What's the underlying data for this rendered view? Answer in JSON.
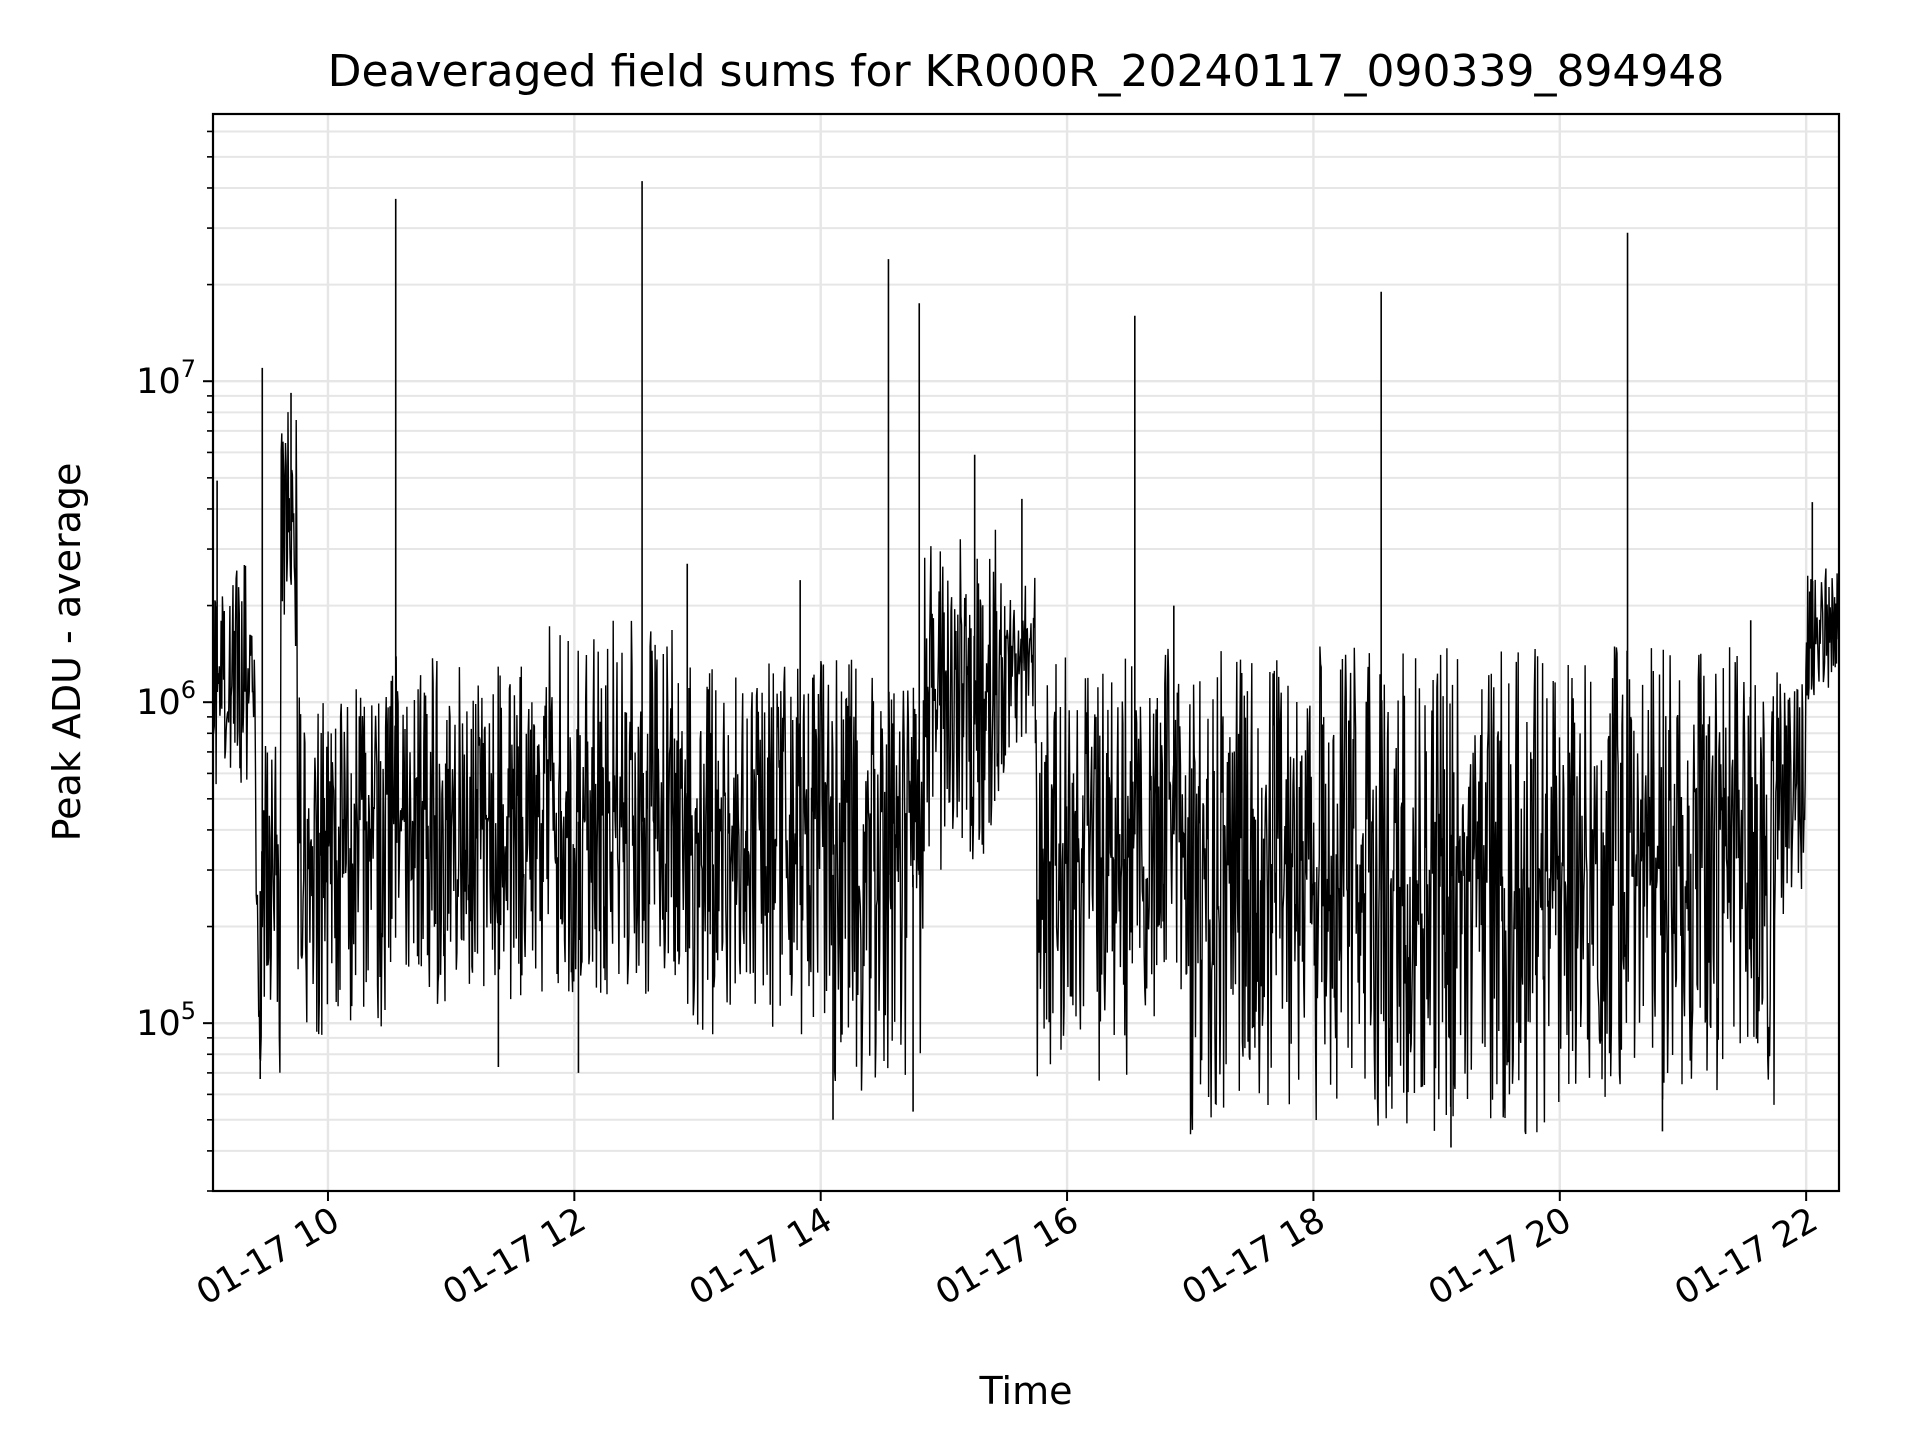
{
  "chart_data": {
    "type": "line",
    "title": "Deaveraged field sums for KR000R_20240117_090339_894948",
    "xlabel": "Time",
    "ylabel": "Peak ADU - average",
    "yscale": "log",
    "grid": true,
    "line_color": "#000000",
    "grid_color": "#e6e6e6",
    "xlim": [
      "2024-01-17 09:04",
      "2024-01-17 22:16"
    ],
    "ylim": [
      30000,
      68000000
    ],
    "x_ticks": [
      {
        "value": "2024-01-17 10:00",
        "label": "01-17 10"
      },
      {
        "value": "2024-01-17 12:00",
        "label": "01-17 12"
      },
      {
        "value": "2024-01-17 14:00",
        "label": "01-17 14"
      },
      {
        "value": "2024-01-17 16:00",
        "label": "01-17 16"
      },
      {
        "value": "2024-01-17 18:00",
        "label": "01-17 18"
      },
      {
        "value": "2024-01-17 20:00",
        "label": "01-17 20"
      },
      {
        "value": "2024-01-17 22:00",
        "label": "01-17 22"
      }
    ],
    "y_ticks": [
      {
        "value": 100000,
        "base": "10",
        "exp": "5"
      },
      {
        "value": 1000000,
        "base": "10",
        "exp": "6"
      },
      {
        "value": 10000000,
        "base": "10",
        "exp": "7"
      }
    ],
    "series": [
      {
        "segments": [
          {
            "start": "2024-01-17 09:04",
            "end": "2024-01-17 09:25",
            "low": 550000,
            "high": 2800000
          },
          {
            "start": "2024-01-17 09:25",
            "end": "2024-01-17 09:37",
            "low": 70000,
            "high": 950000
          },
          {
            "start": "2024-01-17 09:37",
            "end": "2024-01-17 09:45",
            "low": 1300000,
            "high": 9000000
          },
          {
            "start": "2024-01-17 09:45",
            "end": "2024-01-17 10:30",
            "low": 90000,
            "high": 1100000
          },
          {
            "start": "2024-01-17 10:30",
            "end": "2024-01-17 11:45",
            "low": 110000,
            "high": 1500000
          },
          {
            "start": "2024-01-17 11:45",
            "end": "2024-01-17 13:00",
            "low": 100000,
            "high": 1800000
          },
          {
            "start": "2024-01-17 13:00",
            "end": "2024-01-17 14:00",
            "low": 90000,
            "high": 1400000
          },
          {
            "start": "2024-01-17 14:00",
            "end": "2024-01-17 14:50",
            "low": 60000,
            "high": 1400000
          },
          {
            "start": "2024-01-17 14:50",
            "end": "2024-01-17 15:30",
            "low": 300000,
            "high": 3500000
          },
          {
            "start": "2024-01-17 15:30",
            "end": "2024-01-17 15:45",
            "low": 700000,
            "high": 2500000
          },
          {
            "start": "2024-01-17 15:45",
            "end": "2024-01-17 16:30",
            "low": 65000,
            "high": 1400000
          },
          {
            "start": "2024-01-17 16:30",
            "end": "2024-01-17 17:00",
            "low": 100000,
            "high": 1500000
          },
          {
            "start": "2024-01-17 17:00",
            "end": "2024-01-17 18:00",
            "low": 45000,
            "high": 1500000
          },
          {
            "start": "2024-01-17 18:00",
            "end": "2024-01-17 20:00",
            "low": 45000,
            "high": 1500000
          },
          {
            "start": "2024-01-17 20:00",
            "end": "2024-01-17 21:45",
            "low": 55000,
            "high": 1500000
          },
          {
            "start": "2024-01-17 21:45",
            "end": "2024-01-17 22:00",
            "low": 200000,
            "high": 1300000
          },
          {
            "start": "2024-01-17 22:00",
            "end": "2024-01-17 22:16",
            "low": 1000000,
            "high": 2800000
          }
        ],
        "spikes": [
          {
            "x": "2024-01-17 09:06",
            "y": 4900000
          },
          {
            "x": "2024-01-17 09:28",
            "y": 11000000
          },
          {
            "x": "2024-01-17 09:42",
            "y": 9200000
          },
          {
            "x": "2024-01-17 10:33",
            "y": 37000000
          },
          {
            "x": "2024-01-17 12:33",
            "y": 42000000
          },
          {
            "x": "2024-01-17 12:55",
            "y": 2700000
          },
          {
            "x": "2024-01-17 13:50",
            "y": 2400000
          },
          {
            "x": "2024-01-17 14:33",
            "y": 24000000
          },
          {
            "x": "2024-01-17 14:48",
            "y": 17500000
          },
          {
            "x": "2024-01-17 15:15",
            "y": 5900000
          },
          {
            "x": "2024-01-17 15:38",
            "y": 4300000
          },
          {
            "x": "2024-01-17 16:33",
            "y": 16000000
          },
          {
            "x": "2024-01-17 16:52",
            "y": 2000000
          },
          {
            "x": "2024-01-17 18:33",
            "y": 19000000
          },
          {
            "x": "2024-01-17 20:33",
            "y": 29000000
          },
          {
            "x": "2024-01-17 21:33",
            "y": 1800000
          },
          {
            "x": "2024-01-17 22:03",
            "y": 4200000
          }
        ],
        "dips": [
          {
            "x": "2024-01-17 09:27",
            "y": 67000
          },
          {
            "x": "2024-01-17 11:23",
            "y": 73000
          },
          {
            "x": "2024-01-17 12:02",
            "y": 70000
          },
          {
            "x": "2024-01-17 14:06",
            "y": 50000
          },
          {
            "x": "2024-01-17 14:45",
            "y": 53000
          },
          {
            "x": "2024-01-17 19:07",
            "y": 41000
          },
          {
            "x": "2024-01-17 20:50",
            "y": 46000
          }
        ]
      }
    ]
  }
}
